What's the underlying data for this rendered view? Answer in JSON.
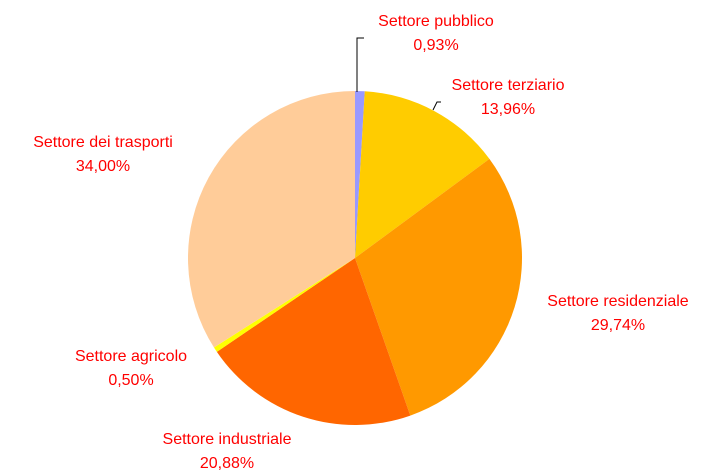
{
  "chart_data": {
    "type": "pie",
    "categories": [
      "Settore pubblico",
      "Settore terziario",
      "Settore residenziale",
      "Settore industriale",
      "Settore agricolo",
      "Settore dei trasporti"
    ],
    "values": [
      0.93,
      13.96,
      29.74,
      20.88,
      0.5,
      34.0
    ],
    "value_labels": [
      "0,93%",
      "13,96%",
      "29,74%",
      "20,88%",
      "0,50%",
      "34,00%"
    ],
    "colors": [
      "#9999ff",
      "#ffcc00",
      "#ff9900",
      "#ff6600",
      "#ffff00",
      "#ffcc99"
    ]
  }
}
